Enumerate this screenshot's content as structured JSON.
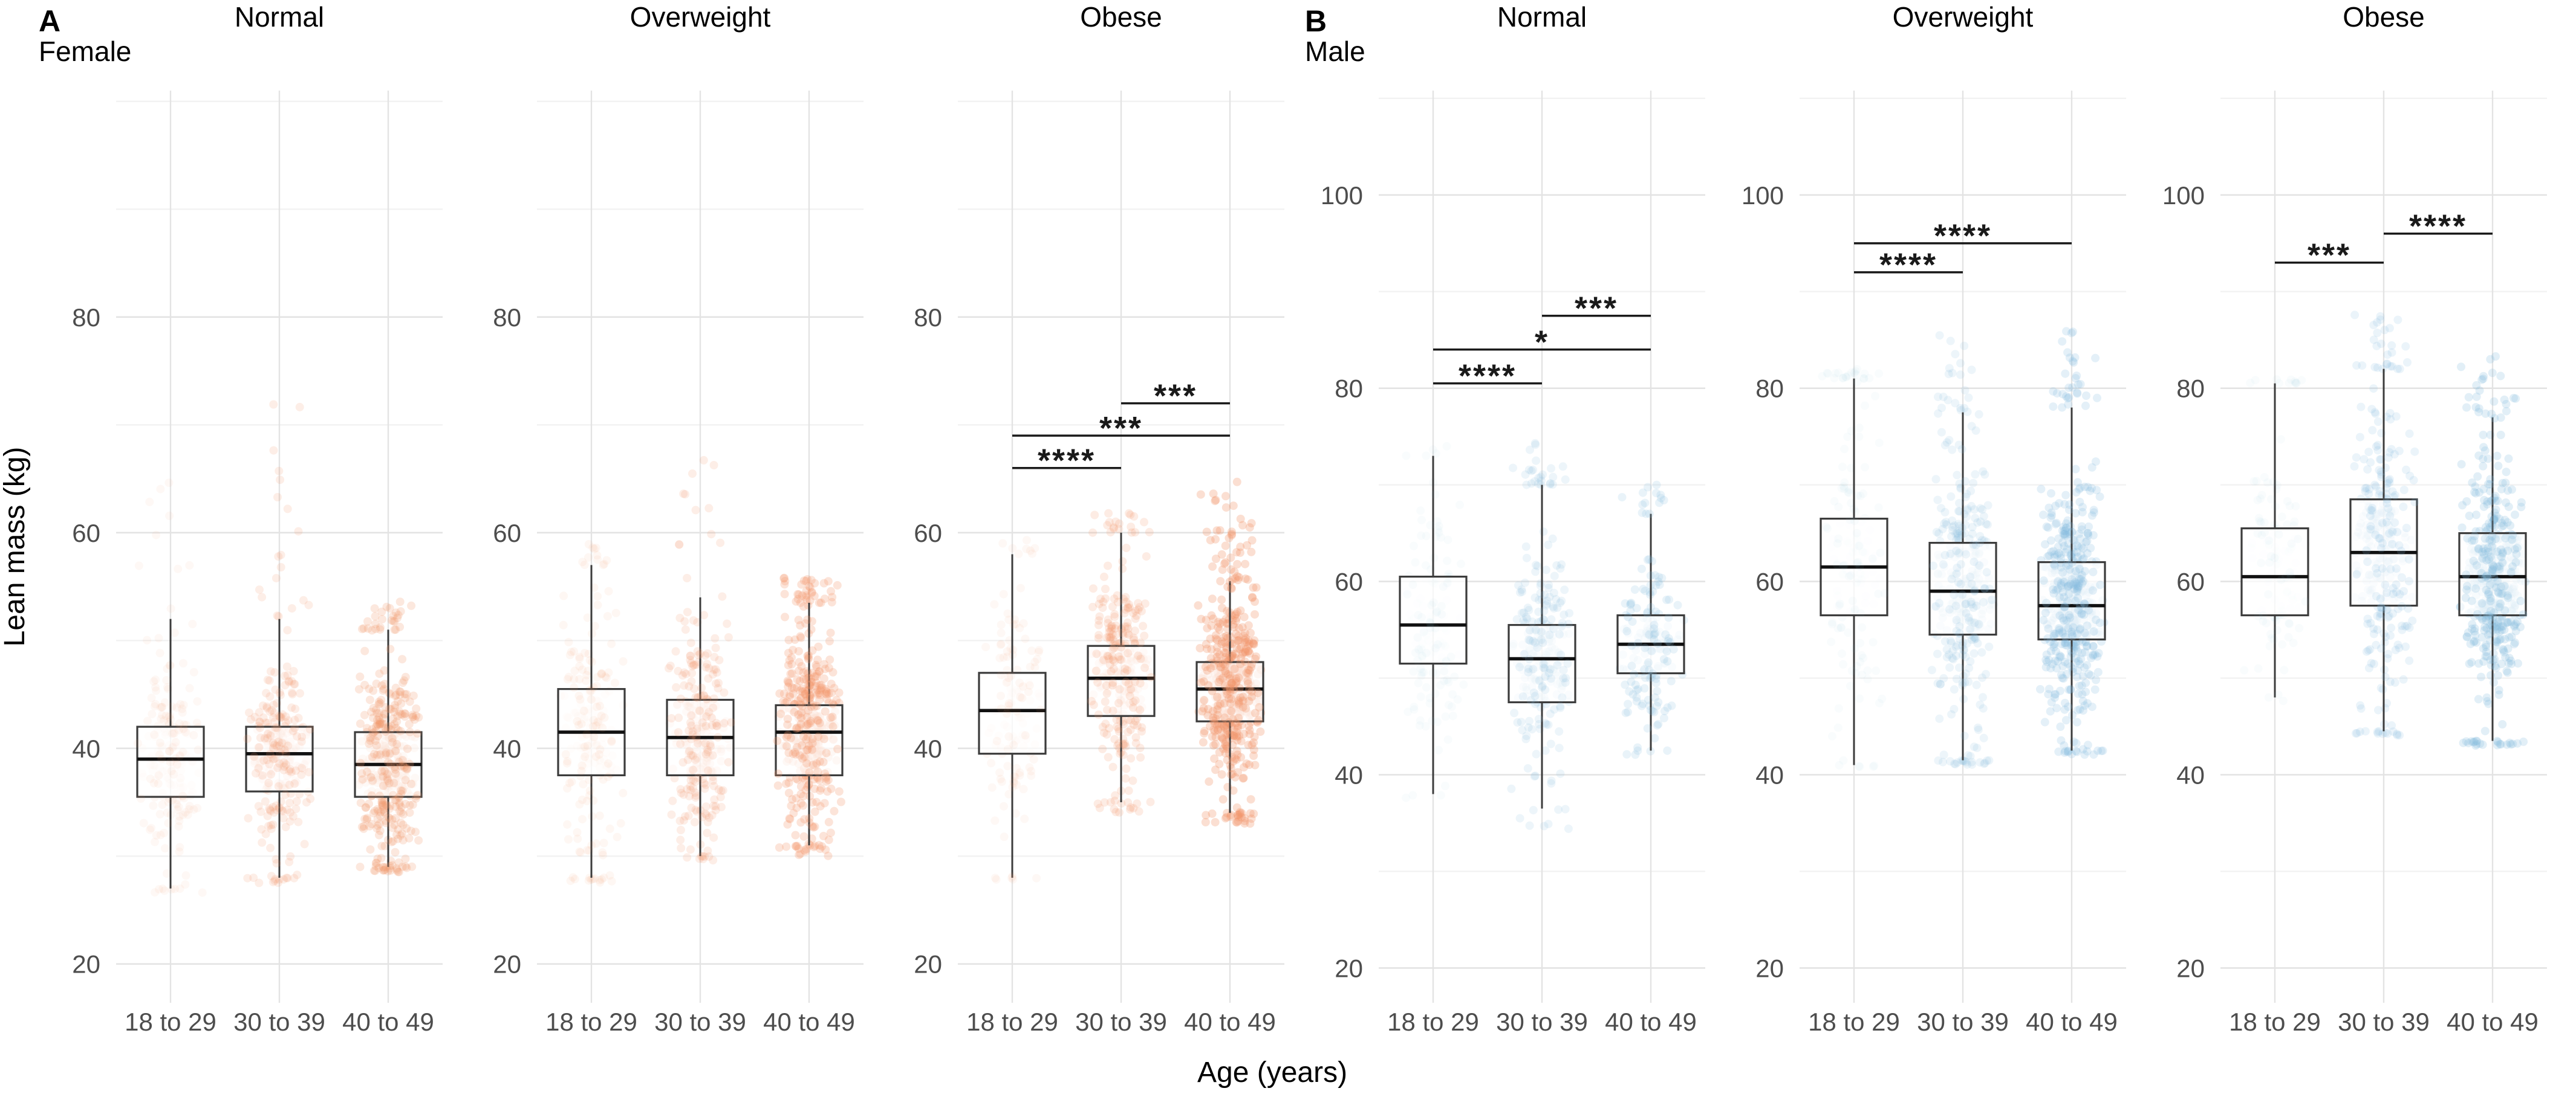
{
  "chart_data": {
    "type": "boxplot",
    "title": "",
    "xlabel": "Age (years)",
    "ylabel": "Lean mass (kg)",
    "categories": [
      "18 to 29",
      "30 to 39",
      "40 to 49"
    ],
    "labels": {
      "panel_a": "A",
      "panel_b": "B",
      "sex_a": "Female",
      "sex_b": "Male"
    },
    "legend_position": "none",
    "grid": true,
    "colors": {
      "female_points": "#F2956B",
      "male_points": "#85BCDF",
      "box_fill": "rgba(255,255,255,0.72)",
      "box_stroke": "#3c3c3c",
      "median_stroke": "#111111",
      "grid_major": "#e3e3e3",
      "grid_minor": "#f2f2f2",
      "tick_text": "#4d4d4d",
      "bracket": "#1a1a1a"
    },
    "panels": [
      {
        "sex": "Female",
        "bmi": "Normal",
        "yticks": [
          20,
          40,
          60,
          80
        ],
        "yminor": [
          30,
          50,
          70,
          90,
          100
        ],
        "ylim": [
          16.4,
          101
        ],
        "boxes": [
          {
            "group": "18 to 29",
            "lo": 27,
            "q1": 35.5,
            "med": 39,
            "q3": 42,
            "hi": 52,
            "n": 200,
            "alpha": 0.07,
            "hi_tail": 66,
            "lo_tail": 26.5
          },
          {
            "group": "30 to 39",
            "lo": 28,
            "q1": 36,
            "med": 39.5,
            "q3": 42,
            "hi": 52,
            "n": 280,
            "alpha": 0.16,
            "hi_tail": 75,
            "lo_tail": 27.5
          },
          {
            "group": "40 to 49",
            "lo": 29,
            "q1": 35.5,
            "med": 38.5,
            "q3": 41.5,
            "hi": 51,
            "n": 430,
            "alpha": 0.22,
            "hi_tail": 54,
            "lo_tail": 28.5
          }
        ],
        "brackets": []
      },
      {
        "sex": "Female",
        "bmi": "Overweight",
        "yticks": [
          20,
          40,
          60,
          80
        ],
        "yminor": [
          30,
          50,
          70,
          90,
          100
        ],
        "ylim": [
          16.4,
          101
        ],
        "boxes": [
          {
            "group": "18 to 29",
            "lo": 28,
            "q1": 37.5,
            "med": 41.5,
            "q3": 45.5,
            "hi": 57,
            "n": 210,
            "alpha": 0.08,
            "hi_tail": 59,
            "lo_tail": 27.5
          },
          {
            "group": "30 to 39",
            "lo": 30,
            "q1": 37.5,
            "med": 41,
            "q3": 44.5,
            "hi": 54,
            "n": 280,
            "alpha": 0.16,
            "hi_tail": 70,
            "lo_tail": 29.5
          },
          {
            "group": "40 to 49",
            "lo": 31,
            "q1": 37.5,
            "med": 41.5,
            "q3": 44,
            "hi": 53.5,
            "n": 450,
            "alpha": 0.26,
            "hi_tail": 56,
            "lo_tail": 30
          }
        ],
        "brackets": []
      },
      {
        "sex": "Female",
        "bmi": "Obese",
        "yticks": [
          20,
          40,
          60,
          80
        ],
        "yminor": [
          30,
          50,
          70,
          90,
          100
        ],
        "ylim": [
          16.4,
          101
        ],
        "boxes": [
          {
            "group": "18 to 29",
            "lo": 28,
            "q1": 39.5,
            "med": 43.5,
            "q3": 47,
            "hi": 58,
            "n": 140,
            "alpha": 0.07,
            "hi_tail": 60,
            "lo_tail": 27.5
          },
          {
            "group": "30 to 39",
            "lo": 35,
            "q1": 43,
            "med": 46.5,
            "q3": 49.5,
            "hi": 60,
            "n": 300,
            "alpha": 0.18,
            "hi_tail": 62,
            "lo_tail": 34
          },
          {
            "group": "40 to 49",
            "lo": 34,
            "q1": 42.5,
            "med": 45.5,
            "q3": 48,
            "hi": 55.5,
            "n": 540,
            "alpha": 0.3,
            "hi_tail": 65,
            "lo_tail": 33
          }
        ],
        "brackets": [
          {
            "from": 0,
            "to": 1,
            "label": "****",
            "y": 66
          },
          {
            "from": 0,
            "to": 2,
            "label": "***",
            "y": 69
          },
          {
            "from": 1,
            "to": 2,
            "label": "***",
            "y": 72
          }
        ]
      },
      {
        "sex": "Male",
        "bmi": "Normal",
        "yticks": [
          20,
          40,
          60,
          80,
          100
        ],
        "yminor": [
          30,
          50,
          70,
          90,
          110
        ],
        "ylim": [
          16.4,
          110.8
        ],
        "boxes": [
          {
            "group": "18 to 29",
            "lo": 38,
            "q1": 51.5,
            "med": 55.5,
            "q3": 60.5,
            "hi": 73,
            "n": 150,
            "alpha": 0.05,
            "hi_tail": 74,
            "lo_tail": 37.5
          },
          {
            "group": "30 to 39",
            "lo": 36.5,
            "q1": 47.5,
            "med": 52,
            "q3": 55.5,
            "hi": 70,
            "n": 260,
            "alpha": 0.15,
            "hi_tail": 75,
            "lo_tail": 34
          },
          {
            "group": "40 to 49",
            "lo": 42.5,
            "q1": 50.5,
            "med": 53.5,
            "q3": 56.5,
            "hi": 67,
            "n": 180,
            "alpha": 0.18,
            "hi_tail": 71,
            "lo_tail": 42
          }
        ],
        "brackets": [
          {
            "from": 0,
            "to": 1,
            "label": "****",
            "y": 80.5
          },
          {
            "from": 0,
            "to": 2,
            "label": "*",
            "y": 84
          },
          {
            "from": 1,
            "to": 2,
            "label": "***",
            "y": 87.5
          }
        ]
      },
      {
        "sex": "Male",
        "bmi": "Overweight",
        "yticks": [
          20,
          40,
          60,
          80,
          100
        ],
        "yminor": [
          30,
          50,
          70,
          90,
          110
        ],
        "ylim": [
          16.4,
          110.8
        ],
        "boxes": [
          {
            "group": "18 to 29",
            "lo": 41,
            "q1": 56.5,
            "med": 61.5,
            "q3": 66.5,
            "hi": 81,
            "n": 160,
            "alpha": 0.05,
            "hi_tail": 82,
            "lo_tail": 40.5
          },
          {
            "group": "30 to 39",
            "lo": 41.5,
            "q1": 54.5,
            "med": 59,
            "q3": 64,
            "hi": 77.5,
            "n": 340,
            "alpha": 0.15,
            "hi_tail": 86,
            "lo_tail": 41
          },
          {
            "group": "40 to 49",
            "lo": 42.5,
            "q1": 54,
            "med": 57.5,
            "q3": 62,
            "hi": 78,
            "n": 540,
            "alpha": 0.22,
            "hi_tail": 86,
            "lo_tail": 42
          }
        ],
        "brackets": [
          {
            "from": 0,
            "to": 1,
            "label": "****",
            "y": 92
          },
          {
            "from": 0,
            "to": 2,
            "label": "****",
            "y": 95
          }
        ]
      },
      {
        "sex": "Male",
        "bmi": "Obese",
        "yticks": [
          20,
          40,
          60,
          80,
          100
        ],
        "yminor": [
          30,
          50,
          70,
          90,
          110
        ],
        "ylim": [
          16.4,
          110.8
        ],
        "boxes": [
          {
            "group": "18 to 29",
            "lo": 48,
            "q1": 56.5,
            "med": 60.5,
            "q3": 65.5,
            "hi": 80.5,
            "n": 120,
            "alpha": 0.05,
            "hi_tail": 81,
            "lo_tail": 47.5
          },
          {
            "group": "30 to 39",
            "lo": 44.5,
            "q1": 57.5,
            "med": 63,
            "q3": 68.5,
            "hi": 82,
            "n": 320,
            "alpha": 0.16,
            "hi_tail": 88,
            "lo_tail": 44
          },
          {
            "group": "40 to 49",
            "lo": 43.5,
            "q1": 56.5,
            "med": 60.5,
            "q3": 65,
            "hi": 77,
            "n": 500,
            "alpha": 0.24,
            "hi_tail": 84,
            "lo_tail": 43
          }
        ],
        "brackets": [
          {
            "from": 0,
            "to": 1,
            "label": "***",
            "y": 93
          },
          {
            "from": 1,
            "to": 2,
            "label": "****",
            "y": 96
          }
        ]
      }
    ]
  }
}
